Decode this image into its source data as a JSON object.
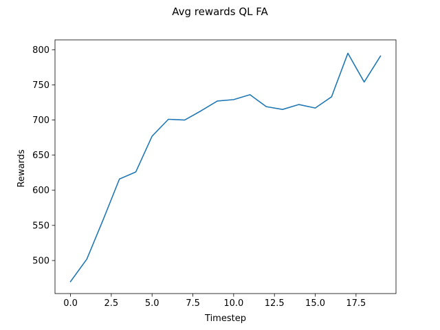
{
  "chart_data": {
    "type": "line",
    "title": "Avg rewards QL FA",
    "xlabel": "Timestep",
    "ylabel": "Rewards",
    "xlim": [
      -0.95,
      19.95
    ],
    "ylim": [
      453,
      814
    ],
    "xticks": [
      0.0,
      2.5,
      5.0,
      7.5,
      10.0,
      12.5,
      15.0,
      17.5
    ],
    "xtick_labels": [
      "0.0",
      "2.5",
      "5.0",
      "7.5",
      "10.0",
      "12.5",
      "15.0",
      "17.5"
    ],
    "yticks": [
      500,
      550,
      600,
      650,
      700,
      750,
      800
    ],
    "ytick_labels": [
      "500",
      "550",
      "600",
      "650",
      "700",
      "750",
      "800"
    ],
    "grid": false,
    "color": "#1f77b4",
    "series": [
      {
        "x": [
          0,
          1,
          2,
          3,
          4,
          5,
          6,
          7,
          8,
          9,
          10,
          11,
          12,
          13,
          14,
          15,
          16,
          17,
          18,
          19
        ],
        "values": [
          470,
          502,
          558,
          616,
          626,
          677,
          701,
          700,
          713,
          727,
          729,
          736,
          719,
          715,
          722,
          717,
          733,
          795,
          754,
          791
        ]
      }
    ]
  }
}
